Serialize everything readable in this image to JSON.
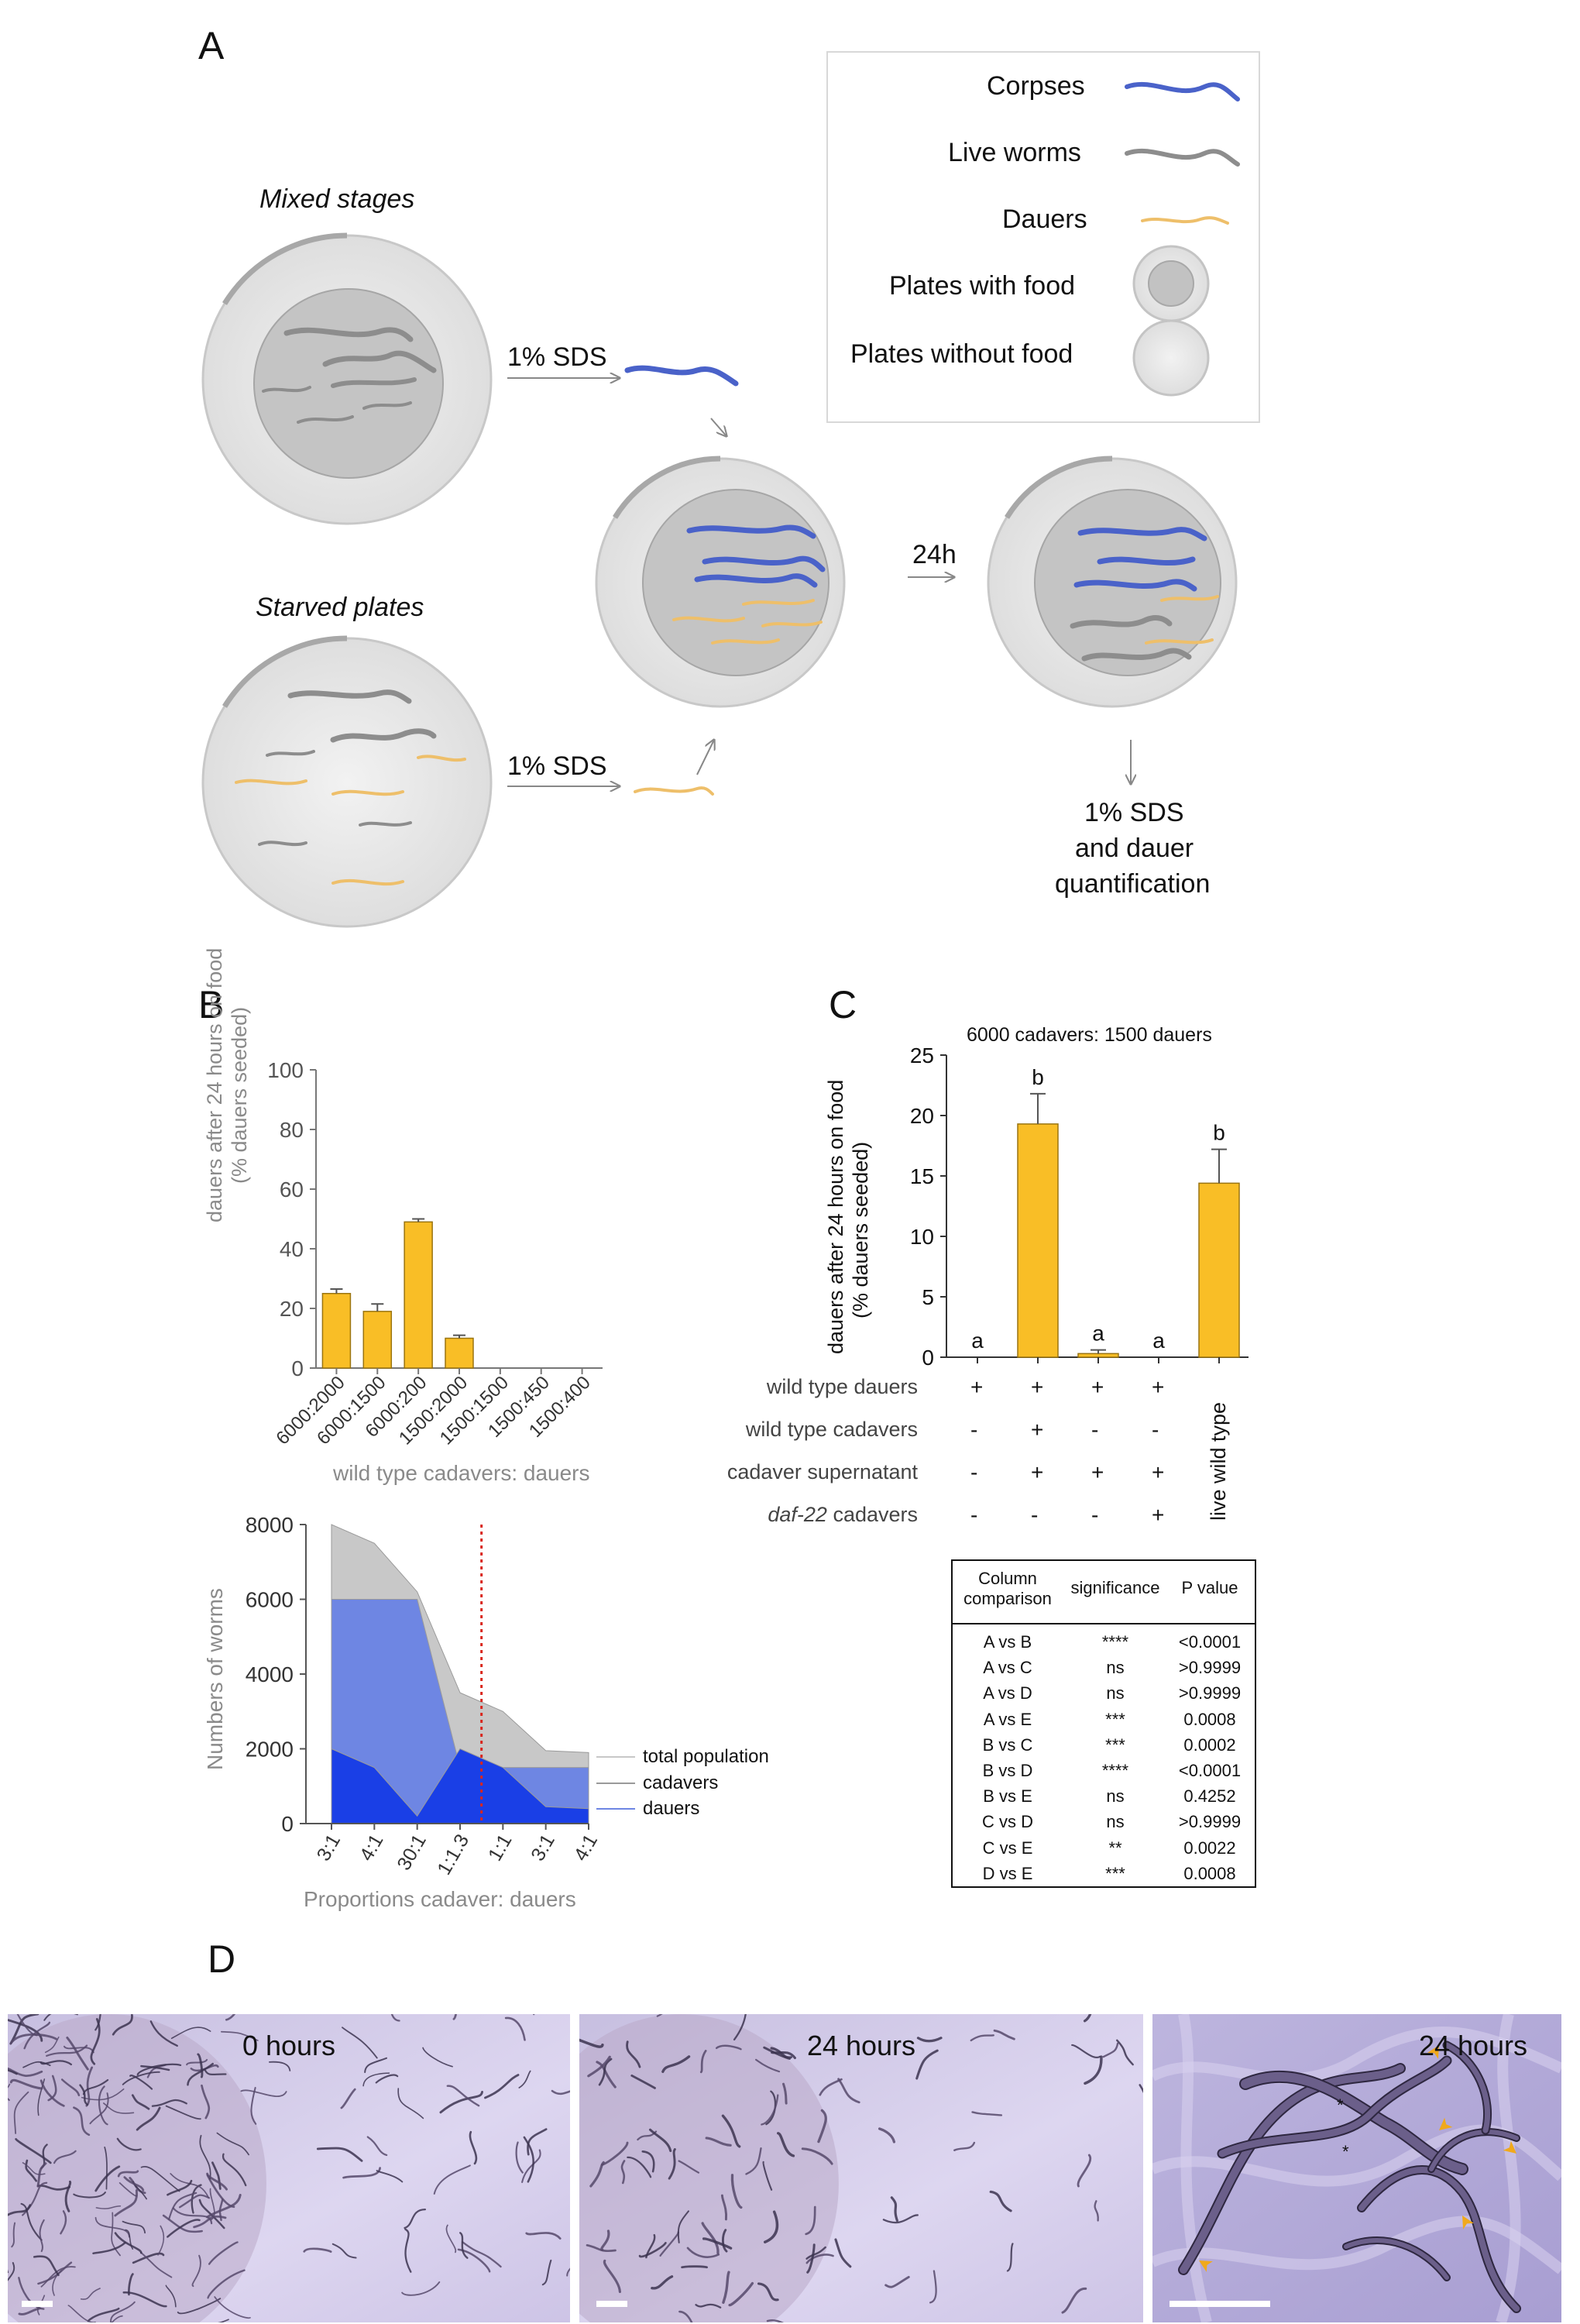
{
  "panels": {
    "a": "A",
    "b": "B",
    "c": "C",
    "d": "D"
  },
  "panel_a": {
    "mixed_label": "Mixed stages",
    "starved_label": "Starved plates",
    "sds_top": "1% SDS",
    "sds_bottom": "1% SDS",
    "time_label": "24h",
    "final_line1": "1% SDS",
    "final_line2": "and dauer",
    "final_line3": "quantification",
    "legend": {
      "corpses": "Corpses",
      "live_worms": "Live worms",
      "dauers": "Dauers",
      "plates_food": "Plates with food",
      "plates_nofood": "Plates without food"
    },
    "colors": {
      "corpse": "#4a62c9",
      "live": "#8d8d8d",
      "dauer": "#eebf6a",
      "plate": "#e9e9e9",
      "food": "#c2c2c2"
    }
  },
  "panel_b_top": {
    "ylabel_line1": "dauers after 24 hours on food",
    "ylabel_line2": "(% dauers seeded)",
    "xlabel": "wild type cadavers: dauers"
  },
  "panel_b_bottom": {
    "ylabel": "Numbers of worms",
    "xlabel": "Proportions cadaver: dauers",
    "legend_total": "total population",
    "legend_cadavers": "cadavers",
    "legend_dauers": "dauers"
  },
  "panel_c": {
    "title": "6000 cadavers: 1500 dauers",
    "ylabel_line1": "dauers after 24 hours on food",
    "ylabel_line2": "(% dauers seeded)",
    "rows": [
      {
        "label": "wild type dauers",
        "italic_part": "",
        "marks": [
          "+",
          "+",
          "+",
          "+"
        ]
      },
      {
        "label": "wild type cadavers",
        "italic_part": "",
        "marks": [
          "-",
          "+",
          "-",
          "-"
        ]
      },
      {
        "label": "cadaver supernatant",
        "italic_part": "",
        "marks": [
          "-",
          "+",
          "+",
          "+"
        ]
      },
      {
        "label": " cadavers",
        "italic_part": "daf-22",
        "marks": [
          "-",
          "-",
          "-",
          "+"
        ]
      }
    ],
    "live_wild_type": "live wild type",
    "table": {
      "h1_line1": "Column",
      "h1_line2": "comparison",
      "h2": "significance",
      "h3": "P value",
      "rows": [
        [
          "A vs B",
          "****",
          "<0.0001"
        ],
        [
          "A vs C",
          "ns",
          ">0.9999"
        ],
        [
          "A vs D",
          "ns",
          ">0.9999"
        ],
        [
          "A vs E",
          "***",
          "0.0008"
        ],
        [
          "B vs C",
          "***",
          "0.0002"
        ],
        [
          "B vs D",
          "****",
          "<0.0001"
        ],
        [
          "B vs E",
          "ns",
          "0.4252"
        ],
        [
          "C vs D",
          "ns",
          ">0.9999"
        ],
        [
          "C vs E",
          "**",
          "0.0022"
        ],
        [
          "D vs E",
          "***",
          "0.0008"
        ]
      ]
    }
  },
  "panel_d": {
    "cap1": "0 hours",
    "cap2": "24 hours",
    "cap3": "24 hours"
  },
  "chart_data": [
    {
      "type": "bar",
      "categories": [
        "6000:2000",
        "6000:1500",
        "6000:200",
        "1500:2000",
        "1500:1500",
        "1500:450",
        "1500:400"
      ],
      "values": [
        25,
        19,
        49,
        10,
        0,
        0,
        0
      ],
      "errors": [
        1.5,
        2.5,
        1.0,
        1.0,
        0,
        0,
        0
      ],
      "xlabel": "wild type cadavers: dauers",
      "ylabel": "dauers after 24 hours on food (% dauers seeded)",
      "ylim": [
        0,
        100
      ],
      "yticks": [
        0,
        20,
        40,
        60,
        80,
        100
      ],
      "color": "#f9be26"
    },
    {
      "type": "area",
      "categories": [
        "3:1",
        "4:1",
        "30:1",
        "1:1.3",
        "1:1",
        "3:1",
        "4:1"
      ],
      "series": [
        {
          "name": "total population",
          "values": [
            8000,
            7500,
            6200,
            3500,
            3000,
            1950,
            1900
          ],
          "color": "#c8c8c8"
        },
        {
          "name": "cadavers",
          "values": [
            6000,
            6000,
            6000,
            1500,
            1500,
            1500,
            1500
          ],
          "color": "#6e86e3"
        },
        {
          "name": "dauers",
          "values": [
            2000,
            1500,
            200,
            2000,
            1500,
            450,
            400
          ],
          "color": "#1a3fe6"
        }
      ],
      "xlabel": "Proportions cadaver: dauers",
      "ylabel": "Numbers of worms",
      "ylim": [
        0,
        8000
      ],
      "yticks": [
        0,
        2000,
        4000,
        6000,
        8000
      ],
      "reference_line_between_categories": [
        3,
        4
      ]
    },
    {
      "type": "bar",
      "title": "6000 cadavers: 1500 dauers",
      "categories": [
        "A",
        "B",
        "C",
        "D",
        "E"
      ],
      "values": [
        0,
        19.3,
        0.3,
        0,
        14.4
      ],
      "errors": [
        0,
        2.5,
        0.3,
        0,
        2.8
      ],
      "letters": [
        "a",
        "b",
        "a",
        "a",
        "b"
      ],
      "ylabel": "dauers after 24 hours on food (% dauers seeded)",
      "ylim": [
        0,
        25
      ],
      "yticks": [
        0,
        5,
        10,
        15,
        20,
        25
      ],
      "color": "#f9be26"
    }
  ]
}
